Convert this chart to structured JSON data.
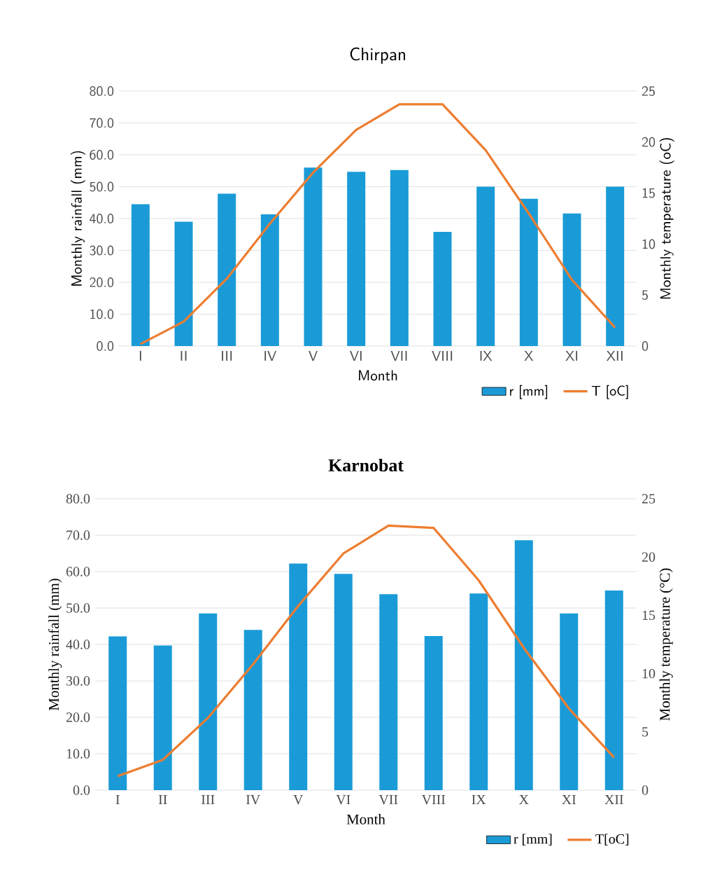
{
  "chart_data": [
    {
      "type": "bar",
      "title": "Chirpan",
      "xlabel": "Month",
      "ylabel": "Monthly rainfall (mm)",
      "y2label": "Monthly temperature (oC)",
      "categories": [
        "I",
        "II",
        "III",
        "IV",
        "V",
        "VI",
        "VII",
        "VIII",
        "IX",
        "X",
        "XI",
        "XII"
      ],
      "series": [
        {
          "name": "r [mm]",
          "color": "#1a9bd7",
          "values": [
            44.5,
            39.0,
            47.8,
            41.3,
            56.0,
            54.7,
            55.2,
            35.8,
            50.0,
            46.2,
            41.6,
            50.0
          ]
        },
        {
          "name": "T [oC]",
          "type": "line",
          "axis": "y2",
          "color": "#ed7d31",
          "values": [
            0.2,
            2.4,
            6.6,
            12.0,
            17.0,
            21.2,
            23.7,
            23.7,
            19.2,
            13.0,
            6.5,
            1.8
          ]
        }
      ],
      "ylim": [
        0,
        80
      ],
      "yticks": [
        {
          "value": 0,
          "label": "0.0"
        },
        {
          "value": 10,
          "label": "10.0"
        },
        {
          "value": 20,
          "label": "20.0"
        },
        {
          "value": 30,
          "label": "30.0"
        },
        {
          "value": 40,
          "label": "40.0"
        },
        {
          "value": 50,
          "label": "50.0"
        },
        {
          "value": 60,
          "label": "60.0"
        },
        {
          "value": 70,
          "label": "70.0"
        },
        {
          "value": 80,
          "label": "80.0"
        }
      ],
      "y2lim": [
        0,
        25
      ],
      "y2ticks": [
        0,
        5,
        10,
        15,
        20,
        25
      ],
      "grid": "y",
      "legend": "bottom right"
    },
    {
      "type": "bar",
      "title": "Karnobat",
      "xlabel": "Month",
      "ylabel": "Monthly rainfall (mm)",
      "y2label": "Monthly temperature (°C)",
      "categories": [
        "I",
        "II",
        "III",
        "IV",
        "V",
        "VI",
        "VII",
        "VIII",
        "IX",
        "X",
        "XI",
        "XII"
      ],
      "series": [
        {
          "name": "r [mm]",
          "color": "#1a9bd7",
          "values": [
            42.2,
            39.7,
            48.5,
            44.0,
            62.2,
            59.4,
            53.8,
            42.3,
            54.0,
            68.6,
            48.5,
            54.8
          ]
        },
        {
          "name": "T[oC]",
          "type": "line",
          "axis": "y2",
          "color": "#ed7d31",
          "values": [
            1.2,
            2.6,
            6.2,
            10.8,
            15.8,
            20.3,
            22.7,
            22.5,
            18.0,
            12.2,
            7.0,
            2.8
          ]
        }
      ],
      "ylim": [
        0,
        80
      ],
      "yticks": [
        {
          "value": 0,
          "label": "0.0"
        },
        {
          "value": 10,
          "label": "10.0"
        },
        {
          "value": 20,
          "label": "20.0"
        },
        {
          "value": 30,
          "label": "30.0"
        },
        {
          "value": 40,
          "label": "40.0"
        },
        {
          "value": 50,
          "label": "50.0"
        },
        {
          "value": 60,
          "label": "60.0"
        },
        {
          "value": 70,
          "label": "70.0"
        },
        {
          "value": 80,
          "label": "80.0"
        }
      ],
      "y2lim": [
        0,
        25
      ],
      "y2ticks": [
        0,
        5,
        10,
        15,
        20,
        25
      ],
      "grid": "y",
      "legend": "bottom right"
    }
  ]
}
